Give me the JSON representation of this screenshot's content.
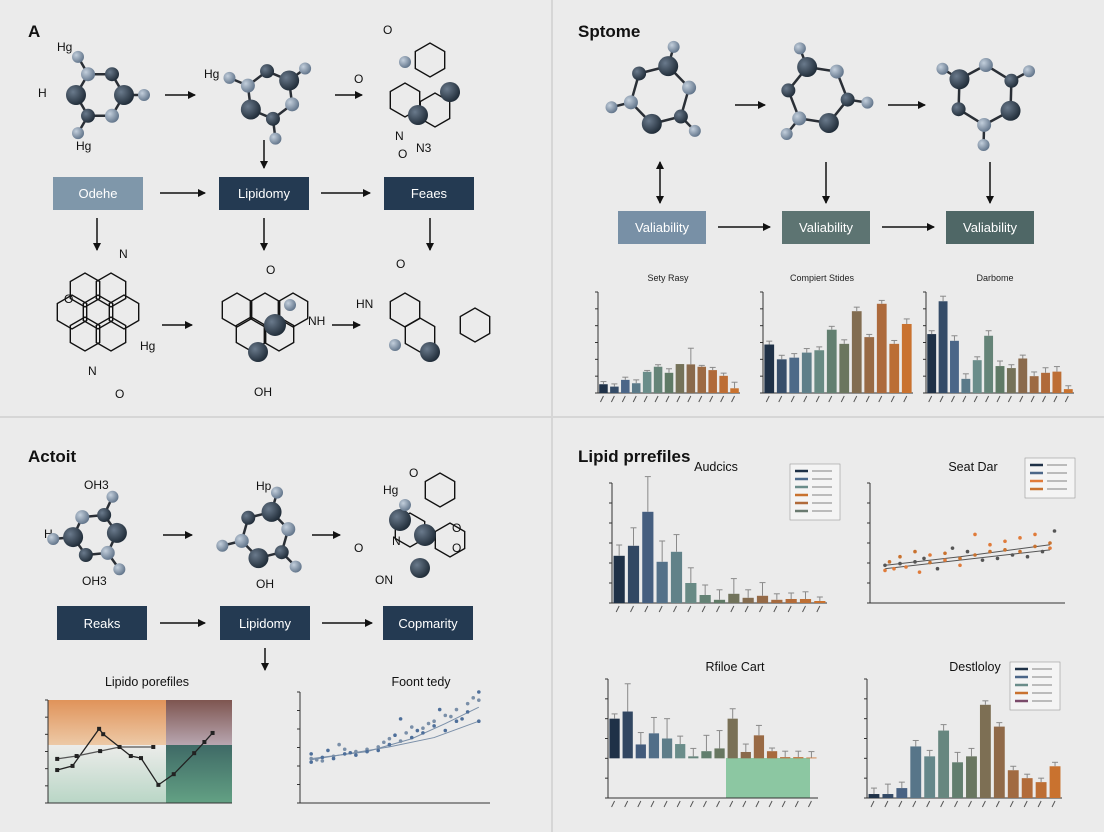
{
  "colors": {
    "background": "#ebebeb",
    "box_dark": "#243a52",
    "box_light": "#7f97aa",
    "box_teal": "#5a7270",
    "atom_dark": "#2b3846",
    "atom_light": "#8195ab",
    "bar_palette": [
      "#1f3147",
      "#4b6688",
      "#6a8d8a",
      "#5f7a66",
      "#8a6a4c",
      "#b06a3a",
      "#c9722f"
    ]
  },
  "panel_a": {
    "label": "A",
    "atoms": [
      "Hg",
      "H",
      "Hg",
      "Hg",
      "O",
      "O",
      "O",
      "N",
      "N3",
      "O",
      "N",
      "O",
      "Hg",
      "N",
      "O",
      "HN",
      "NH",
      "OH",
      "O",
      "O"
    ],
    "boxes": [
      "Odehe",
      "Lipidomy",
      "Feaes"
    ]
  },
  "panel_b": {
    "label": "Sptome",
    "boxes": [
      "Valiability",
      "Valiability",
      "Valiability"
    ]
  },
  "panel_c": {
    "label": "Actoit",
    "atoms": [
      "OH3",
      "H",
      "OH3",
      "Hp",
      "OH",
      "O",
      "Hg",
      "O",
      "N",
      "O",
      "O",
      "ON"
    ],
    "boxes": [
      "Reaks",
      "Lipidomy",
      "Copmarity"
    ]
  },
  "panel_d": {
    "label": "Lipid prrefiles"
  },
  "chart_data": [
    {
      "id": "sety",
      "type": "bar",
      "title": "Sety Rasy",
      "ylim": [
        0,
        300
      ],
      "values": [
        26,
        19,
        39,
        29,
        63,
        78,
        60,
        86,
        85,
        78,
        68,
        51,
        14
      ],
      "errors": [
        8,
        8,
        8,
        10,
        4,
        6,
        12,
        0,
        48,
        4,
        8,
        8,
        18
      ]
    },
    {
      "id": "compiert",
      "type": "bar",
      "title": "Compiert Stides",
      "ylim": [
        0,
        300
      ],
      "values": [
        144,
        100,
        105,
        120,
        127,
        188,
        146,
        243,
        166,
        265,
        146,
        205
      ],
      "errors": [
        10,
        12,
        12,
        12,
        10,
        10,
        12,
        12,
        8,
        10,
        10,
        15
      ]
    },
    {
      "id": "darbome",
      "type": "bar",
      "title": "Darbome",
      "ylim": [
        0,
        6
      ],
      "values": [
        3.5,
        5.45,
        3.1,
        0.84,
        1.95,
        3.4,
        1.6,
        1.48,
        2.05,
        1.0,
        1.2,
        1.27,
        0.23
      ],
      "errors": [
        0.2,
        0.3,
        0.3,
        0.3,
        0.2,
        0.3,
        0.3,
        0.2,
        0.2,
        0.25,
        0.3,
        0.3,
        0.2
      ]
    },
    {
      "id": "lipido",
      "type": "line",
      "title": "Lipido porefiles",
      "xlim": [
        0,
        180
      ],
      "ylim": [
        0,
        250
      ],
      "series": [
        {
          "x": [
            9,
            24,
            50,
            54,
            81,
            91,
            108,
            123,
            143,
            153,
            161
          ],
          "y": [
            80,
            90,
            180,
            167,
            114,
            109,
            44,
            70,
            121,
            148,
            170
          ]
        },
        {
          "x": [
            9,
            28,
            51,
            70,
            103
          ],
          "y": [
            107,
            114,
            126,
            136,
            136
          ]
        }
      ]
    },
    {
      "id": "foont",
      "type": "scatter",
      "title": "Foont tedy",
      "xlim": [
        0,
        17
      ],
      "ylim": [
        0,
        95
      ],
      "points": [
        [
          1,
          35
        ],
        [
          1,
          38
        ],
        [
          1,
          42
        ],
        [
          1.5,
          37
        ],
        [
          2,
          39
        ],
        [
          2,
          36
        ],
        [
          2.5,
          45
        ],
        [
          3,
          40
        ],
        [
          3,
          38
        ],
        [
          3.5,
          50
        ],
        [
          4,
          42
        ],
        [
          4,
          46
        ],
        [
          4.5,
          43
        ],
        [
          5,
          44
        ],
        [
          5,
          41
        ],
        [
          6,
          46
        ],
        [
          6,
          44
        ],
        [
          7,
          48
        ],
        [
          7,
          45
        ],
        [
          7.5,
          52
        ],
        [
          8,
          50
        ],
        [
          8,
          55
        ],
        [
          8.5,
          58
        ],
        [
          9,
          53
        ],
        [
          9,
          72
        ],
        [
          9.5,
          60
        ],
        [
          10,
          56
        ],
        [
          10,
          65
        ],
        [
          10.5,
          62
        ],
        [
          11,
          64
        ],
        [
          11,
          60
        ],
        [
          11.5,
          68
        ],
        [
          12,
          66
        ],
        [
          12,
          70
        ],
        [
          12.5,
          80
        ],
        [
          13,
          75
        ],
        [
          13,
          62
        ],
        [
          13.5,
          74
        ],
        [
          14,
          70
        ],
        [
          14,
          80
        ],
        [
          14.5,
          72
        ],
        [
          15,
          85
        ],
        [
          15,
          78
        ],
        [
          15.5,
          90
        ],
        [
          16,
          95
        ],
        [
          16,
          88
        ],
        [
          16,
          70
        ]
      ],
      "trends": [
        [
          [
            1,
            38
          ],
          [
            6,
            44
          ],
          [
            10,
            55
          ],
          [
            13,
            68
          ],
          [
            16,
            82
          ]
        ],
        [
          [
            1,
            37
          ],
          [
            8,
            48
          ],
          [
            12,
            56
          ],
          [
            16,
            70
          ]
        ]
      ]
    },
    {
      "id": "audcics",
      "type": "bar",
      "title": "Audcics",
      "ylim": [
        0,
        300
      ],
      "values": [
        118,
        143,
        228,
        103,
        128,
        50,
        20,
        8,
        23,
        13,
        18,
        8,
        10,
        10,
        5
      ],
      "errors": [
        27,
        45,
        88,
        52,
        43,
        38,
        25,
        25,
        38,
        20,
        33,
        15,
        15,
        18,
        10
      ],
      "legend_entries": 6
    },
    {
      "id": "seatdar",
      "type": "scatter",
      "title": "Seat Dar",
      "xlim": [
        0,
        13
      ],
      "ylim": [
        0,
        350
      ],
      "points": [
        [
          1,
          95
        ],
        [
          1,
          110
        ],
        [
          1.3,
          120
        ],
        [
          1.6,
          100
        ],
        [
          2,
          115
        ],
        [
          2,
          135
        ],
        [
          2.4,
          105
        ],
        [
          3,
          120
        ],
        [
          3,
          150
        ],
        [
          3.3,
          90
        ],
        [
          3.6,
          130
        ],
        [
          4,
          118
        ],
        [
          4,
          140
        ],
        [
          4.5,
          100
        ],
        [
          5,
          145
        ],
        [
          5,
          125
        ],
        [
          5.5,
          160
        ],
        [
          6,
          130
        ],
        [
          6,
          110
        ],
        [
          6.5,
          150
        ],
        [
          7,
          140
        ],
        [
          7,
          200
        ],
        [
          7.5,
          125
        ],
        [
          8,
          150
        ],
        [
          8,
          170
        ],
        [
          8.5,
          130
        ],
        [
          9,
          155
        ],
        [
          9,
          180
        ],
        [
          9.5,
          140
        ],
        [
          10,
          150
        ],
        [
          10,
          190
        ],
        [
          10.5,
          135
        ],
        [
          11,
          165
        ],
        [
          11,
          200
        ],
        [
          11.5,
          150
        ],
        [
          12,
          175
        ],
        [
          12,
          160
        ],
        [
          12.3,
          210
        ]
      ],
      "trends": [
        [
          [
            1,
            110
          ],
          [
            6,
            135
          ],
          [
            12,
            170
          ]
        ],
        [
          [
            1,
            100
          ],
          [
            6,
            125
          ],
          [
            12,
            155
          ]
        ]
      ],
      "legend_entries": 4
    },
    {
      "id": "rfiloe",
      "type": "bar",
      "title": "Rfiloe Cart",
      "ylim": [
        -100,
        200
      ],
      "values": [
        100,
        118,
        35,
        63,
        50,
        36,
        5,
        18,
        25,
        100,
        16,
        58,
        18,
        3,
        3,
        2
      ],
      "errors": [
        12,
        70,
        30,
        40,
        50,
        20,
        20,
        40,
        45,
        25,
        20,
        25,
        8,
        15,
        15,
        15
      ]
    },
    {
      "id": "destloloy",
      "type": "bar",
      "title": "Destloloy",
      "ylim": [
        0,
        60
      ],
      "values": [
        2,
        2,
        5,
        26,
        21,
        34,
        18,
        21,
        47,
        36,
        14,
        10,
        8,
        16
      ],
      "errors": [
        3,
        5,
        3,
        3,
        3,
        3,
        5,
        4,
        2,
        2,
        2,
        2,
        2,
        2
      ],
      "legend_entries": 5
    }
  ]
}
